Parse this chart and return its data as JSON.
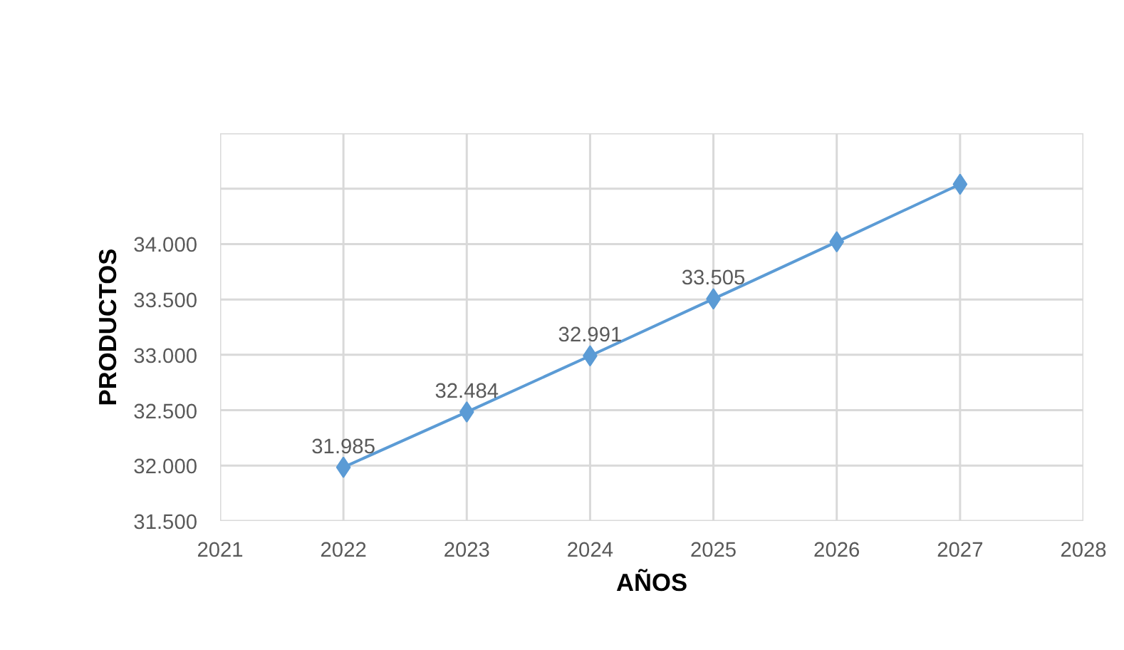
{
  "chart_data": {
    "type": "line",
    "xlabel": "AÑOS",
    "ylabel": "PRODUCTOS",
    "x": [
      2022,
      2023,
      2024,
      2025,
      2026,
      2027
    ],
    "series": [
      {
        "color": "#5b9bd5",
        "values": [
          31985,
          32484,
          32991,
          33505,
          34020,
          34540
        ],
        "value_labels": [
          "31.985",
          "32.484",
          "32.991",
          "33.505",
          null,
          null
        ]
      }
    ],
    "xlim": [
      2021,
      2028
    ],
    "xticks": [
      2021,
      2022,
      2023,
      2024,
      2025,
      2026,
      2027,
      2028
    ],
    "ylim": [
      31500,
      35000
    ],
    "yticks": [
      {
        "value": 31500,
        "label": "31.500"
      },
      {
        "value": 32000,
        "label": "32.000"
      },
      {
        "value": 32500,
        "label": "32.500"
      },
      {
        "value": 33000,
        "label": "33.000"
      },
      {
        "value": 33500,
        "label": "33.500"
      },
      {
        "value": 34000,
        "label": "34.000"
      },
      {
        "value": 34500,
        "label": null
      },
      {
        "value": 35000,
        "label": null
      }
    ],
    "grid": true,
    "marker": "diamond",
    "line_style": "solid"
  }
}
